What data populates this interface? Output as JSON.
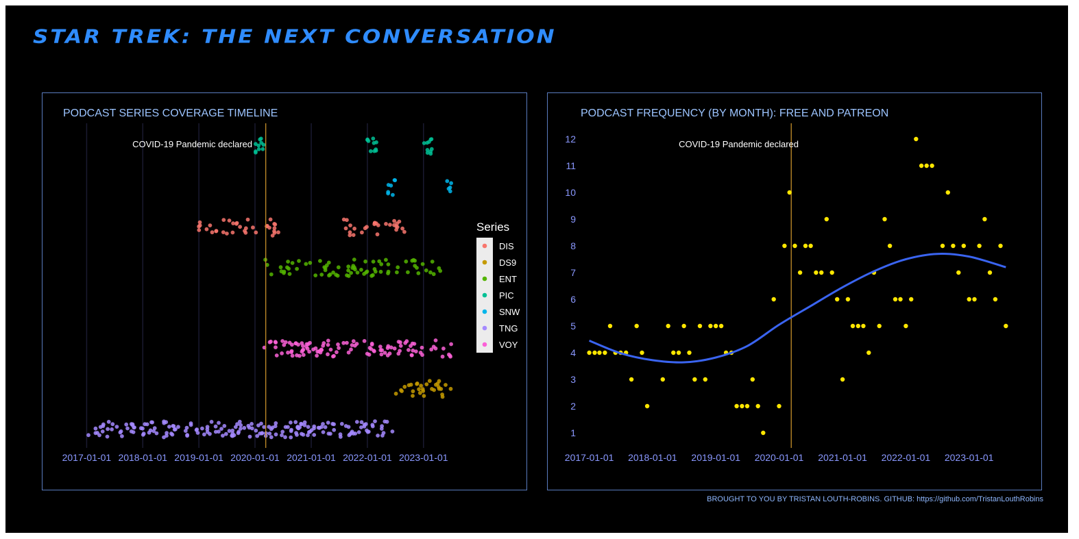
{
  "page": {
    "title": "STAR TREK: THE NEXT CONVERSATION",
    "caption": "BROUGHT TO YOU BY TRISTAN LOUTH-ROBINS. GITHUB: https://github.com/TristanLouthRobins"
  },
  "colors": {
    "background": "#000000",
    "title": "#2f8cff",
    "panel_border": "#5a7cc0",
    "panel_title": "#9cc4ff",
    "tick_label": "#8a98ff",
    "event_line": "#c7902a",
    "smooth_line": "#3a64f0",
    "frequency_points": "#ffe600",
    "grid": "#1a1a30"
  },
  "chart_data": [
    {
      "type": "scatter",
      "title": "PODCAST SERIES COVERAGE TIMELINE",
      "xlabel": "",
      "ylabel": "",
      "x_type": "date",
      "xlim": [
        "2016-11-20",
        "2023-10-10"
      ],
      "x_ticks": [
        "2017-01-01",
        "2018-01-01",
        "2019-01-01",
        "2020-01-01",
        "2021-01-01",
        "2022-01-01",
        "2023-01-01"
      ],
      "grid": "vertical major lines only",
      "legend_title": "Series",
      "legend_position": "right",
      "annotations": [
        {
          "text": "COVID-19 Pandemic declared",
          "x": "2020-03-11",
          "type": "vertical-line"
        }
      ],
      "series": [
        {
          "name": "DIS",
          "color": "#f8766d",
          "row": 5,
          "segments": [
            [
              "2019-01-01",
              "2020-06-01",
              35
            ],
            [
              "2021-08-01",
              "2022-09-01",
              28
            ]
          ]
        },
        {
          "name": "DS9",
          "color": "#c49a00",
          "row": 1,
          "segments": [
            [
              "2022-07-01",
              "2023-07-01",
              30
            ]
          ]
        },
        {
          "name": "ENT",
          "color": "#53b400",
          "row": 4,
          "segments": [
            [
              "2020-03-01",
              "2023-05-01",
              75
            ]
          ]
        },
        {
          "name": "PIC",
          "color": "#00c094",
          "row": 7,
          "segments": [
            [
              "2020-01-01",
              "2020-03-01",
              10
            ],
            [
              "2022-01-01",
              "2022-03-01",
              10
            ],
            [
              "2023-01-01",
              "2023-03-01",
              10
            ]
          ]
        },
        {
          "name": "SNW",
          "color": "#00b6eb",
          "row": 6,
          "segments": [
            [
              "2022-05-01",
              "2022-07-01",
              7
            ],
            [
              "2023-06-01",
              "2023-07-01",
              5
            ]
          ]
        },
        {
          "name": "TNG",
          "color": "#a58aff",
          "row": 0,
          "segments": [
            [
              "2017-01-01",
              "2022-07-01",
              190
            ]
          ]
        },
        {
          "name": "VOY",
          "color": "#fb61d7",
          "row": 2,
          "segments": [
            [
              "2020-03-01",
              "2023-07-01",
              110
            ]
          ]
        }
      ]
    },
    {
      "type": "scatter",
      "title": "PODCAST FREQUENCY (BY MONTH): FREE AND PATREON",
      "xlabel": "",
      "ylabel": "",
      "x_type": "date",
      "xlim": [
        "2016-11-20",
        "2023-10-10"
      ],
      "ylim": [
        0.4,
        12.6
      ],
      "x_ticks": [
        "2017-01-01",
        "2018-01-01",
        "2019-01-01",
        "2020-01-01",
        "2021-01-01",
        "2022-01-01",
        "2023-01-01"
      ],
      "y_ticks": [
        1,
        2,
        3,
        4,
        5,
        6,
        7,
        8,
        9,
        10,
        11,
        12
      ],
      "grid": "none",
      "trend_line": "loess smooth",
      "annotations": [
        {
          "text": "COVID-19 Pandemic declared",
          "x": "2020-03-11",
          "type": "vertical-line"
        }
      ],
      "points": [
        [
          "2017-01-01",
          4
        ],
        [
          "2017-02-01",
          4
        ],
        [
          "2017-03-01",
          4
        ],
        [
          "2017-04-01",
          4
        ],
        [
          "2017-05-01",
          5
        ],
        [
          "2017-06-01",
          4
        ],
        [
          "2017-07-01",
          4
        ],
        [
          "2017-08-01",
          4
        ],
        [
          "2017-09-01",
          3
        ],
        [
          "2017-10-01",
          5
        ],
        [
          "2017-11-01",
          4
        ],
        [
          "2017-12-01",
          2
        ],
        [
          "2018-03-01",
          3
        ],
        [
          "2018-04-01",
          5
        ],
        [
          "2018-05-01",
          4
        ],
        [
          "2018-06-01",
          4
        ],
        [
          "2018-07-01",
          5
        ],
        [
          "2018-08-01",
          4
        ],
        [
          "2018-09-01",
          3
        ],
        [
          "2018-10-01",
          5
        ],
        [
          "2018-11-01",
          3
        ],
        [
          "2018-12-01",
          5
        ],
        [
          "2019-01-01",
          5
        ],
        [
          "2019-02-01",
          5
        ],
        [
          "2019-03-01",
          4
        ],
        [
          "2019-04-01",
          4
        ],
        [
          "2019-05-01",
          2
        ],
        [
          "2019-06-01",
          2
        ],
        [
          "2019-07-01",
          2
        ],
        [
          "2019-08-01",
          3
        ],
        [
          "2019-09-01",
          2
        ],
        [
          "2019-10-01",
          1
        ],
        [
          "2019-12-01",
          6
        ],
        [
          "2020-01-01",
          2
        ],
        [
          "2020-02-01",
          8
        ],
        [
          "2020-03-01",
          10
        ],
        [
          "2020-04-01",
          8
        ],
        [
          "2020-05-01",
          7
        ],
        [
          "2020-06-01",
          8
        ],
        [
          "2020-07-01",
          8
        ],
        [
          "2020-08-01",
          7
        ],
        [
          "2020-09-01",
          7
        ],
        [
          "2020-10-01",
          9
        ],
        [
          "2020-11-01",
          7
        ],
        [
          "2020-12-01",
          6
        ],
        [
          "2021-01-01",
          3
        ],
        [
          "2021-02-01",
          6
        ],
        [
          "2021-03-01",
          5
        ],
        [
          "2021-04-01",
          5
        ],
        [
          "2021-05-01",
          5
        ],
        [
          "2021-06-01",
          4
        ],
        [
          "2021-07-01",
          7
        ],
        [
          "2021-08-01",
          5
        ],
        [
          "2021-09-01",
          9
        ],
        [
          "2021-10-01",
          8
        ],
        [
          "2021-11-01",
          6
        ],
        [
          "2021-12-01",
          6
        ],
        [
          "2022-01-01",
          5
        ],
        [
          "2022-02-01",
          6
        ],
        [
          "2022-03-01",
          12
        ],
        [
          "2022-04-01",
          11
        ],
        [
          "2022-05-01",
          11
        ],
        [
          "2022-06-01",
          11
        ],
        [
          "2022-08-01",
          8
        ],
        [
          "2022-09-01",
          10
        ],
        [
          "2022-10-01",
          8
        ],
        [
          "2022-11-01",
          7
        ],
        [
          "2022-12-01",
          8
        ],
        [
          "2023-01-01",
          6
        ],
        [
          "2023-02-01",
          6
        ],
        [
          "2023-03-01",
          8
        ],
        [
          "2023-04-01",
          9
        ],
        [
          "2023-05-01",
          7
        ],
        [
          "2023-06-01",
          6
        ],
        [
          "2023-07-01",
          8
        ],
        [
          "2023-08-01",
          5
        ]
      ],
      "smooth": [
        [
          "2017-01-01",
          4.45
        ],
        [
          "2017-07-01",
          3.98
        ],
        [
          "2018-01-01",
          3.72
        ],
        [
          "2018-07-01",
          3.64
        ],
        [
          "2019-01-01",
          3.82
        ],
        [
          "2019-07-01",
          4.25
        ],
        [
          "2020-01-01",
          5.05
        ],
        [
          "2020-07-01",
          5.75
        ],
        [
          "2021-01-01",
          6.45
        ],
        [
          "2021-07-01",
          7.05
        ],
        [
          "2022-01-01",
          7.5
        ],
        [
          "2022-07-01",
          7.7
        ],
        [
          "2023-01-01",
          7.6
        ],
        [
          "2023-08-01",
          7.2
        ]
      ]
    }
  ]
}
